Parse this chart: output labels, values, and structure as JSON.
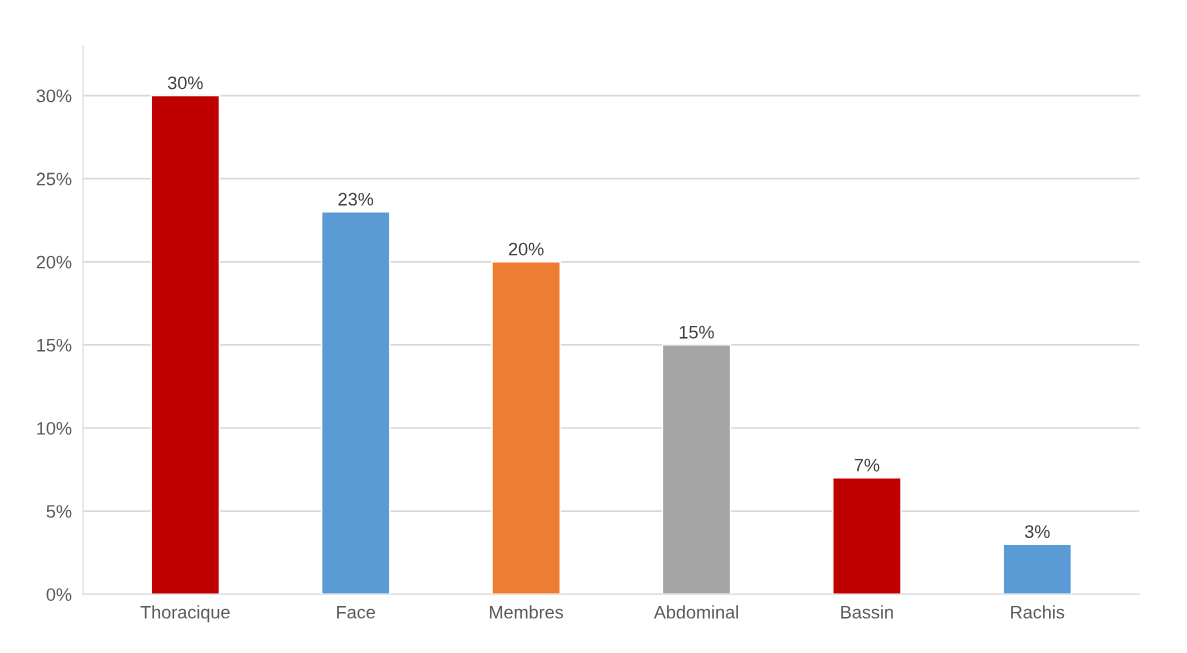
{
  "chart_data": {
    "type": "bar",
    "categories": [
      "Thoracique",
      "Face",
      "Membres",
      "Abdominal",
      "Bassin",
      "Rachis"
    ],
    "values": [
      30,
      23,
      20,
      15,
      7,
      3
    ],
    "colors": [
      "#c00000",
      "#5b9bd5",
      "#ed7d31",
      "#a5a5a5",
      "#c00000",
      "#5b9bd5"
    ],
    "value_labels": [
      "30%",
      "23%",
      "20%",
      "15%",
      "7%",
      "3%"
    ],
    "ylim": [
      0,
      33
    ],
    "yticks": [
      {
        "value": 0,
        "label": "0%"
      },
      {
        "value": 5,
        "label": "5%"
      },
      {
        "value": 10,
        "label": "10%"
      },
      {
        "value": 15,
        "label": "15%"
      },
      {
        "value": 20,
        "label": "20%"
      },
      {
        "value": 25,
        "label": "25%"
      },
      {
        "value": 30,
        "label": "30%"
      }
    ],
    "grid": "y"
  }
}
